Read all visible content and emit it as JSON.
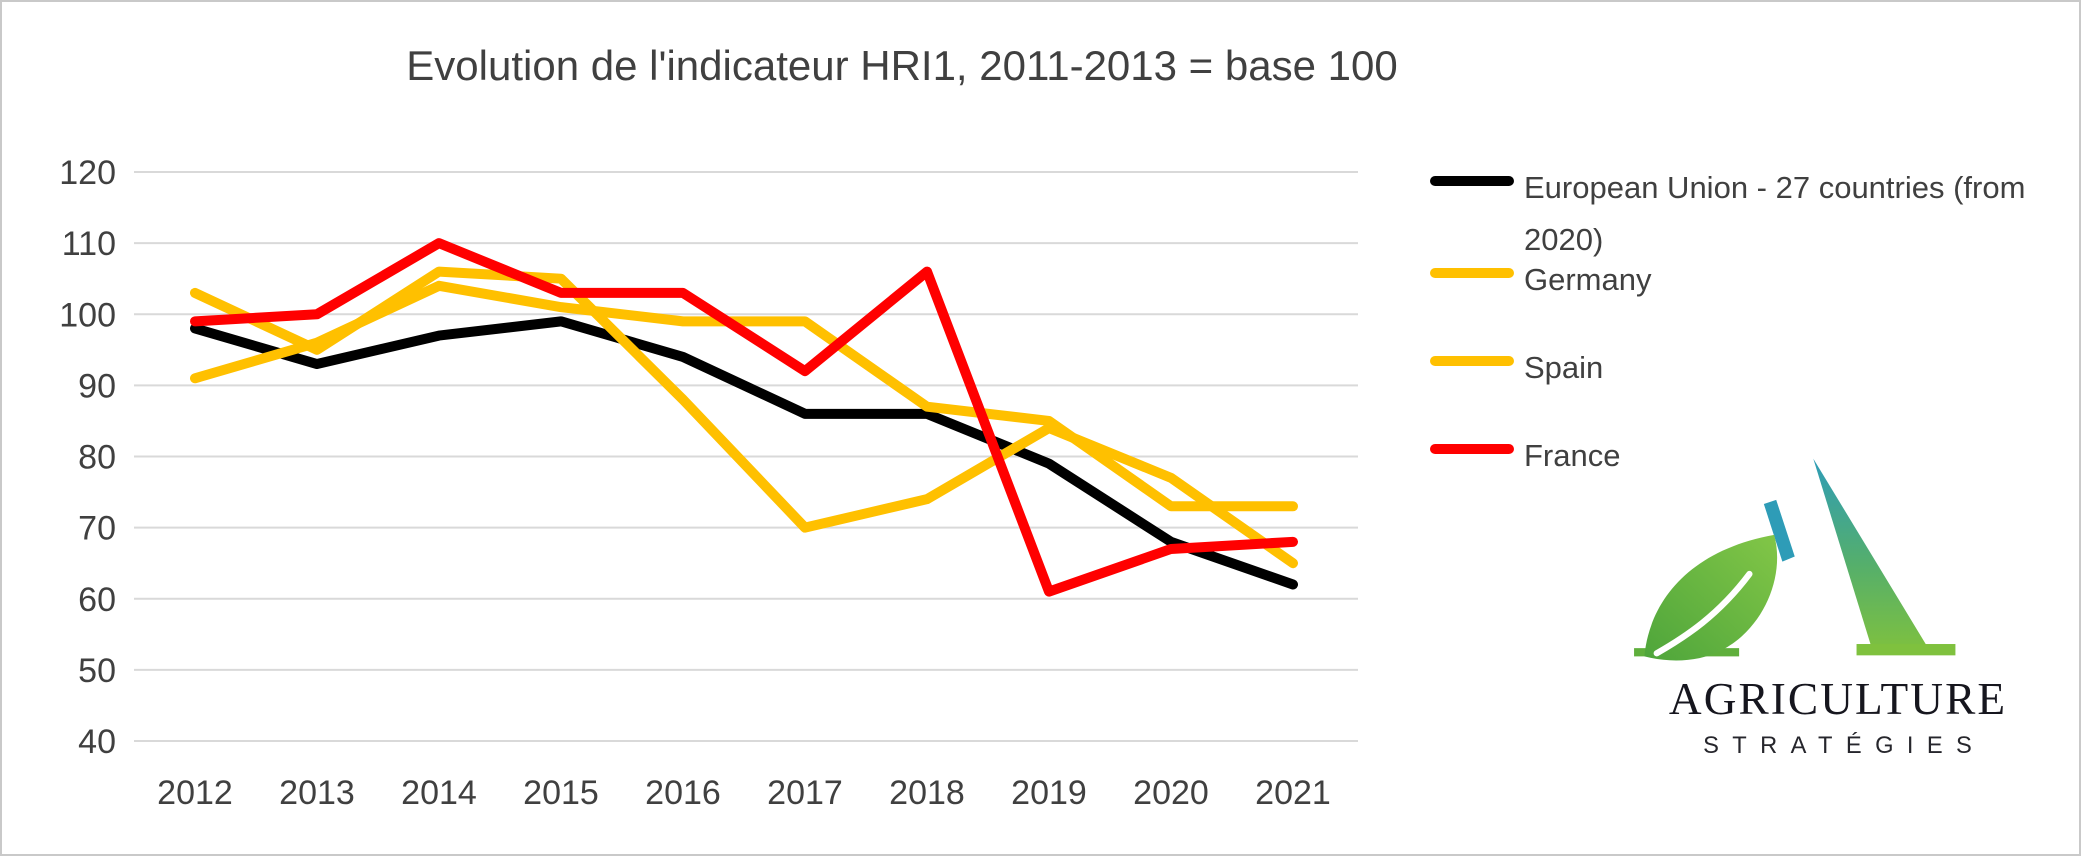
{
  "title": "Evolution de l'indicateur HRI1, 2011-2013 = base 100",
  "chart_data": {
    "type": "line",
    "title": "Evolution de l'indicateur HRI1, 2011-2013 = base 100",
    "x": [
      2012,
      2013,
      2014,
      2015,
      2016,
      2017,
      2018,
      2019,
      2020,
      2021
    ],
    "yticks": [
      120,
      110,
      100,
      90,
      80,
      70,
      60,
      50,
      40
    ],
    "ylim": [
      40,
      120
    ],
    "xlabel": "",
    "ylabel": "",
    "grid": "horizontal",
    "legend_position": "right",
    "series": [
      {
        "name": "European Union - 27 countries (from 2020)",
        "color": "#000000",
        "values": [
          98,
          93,
          97,
          99,
          94,
          86,
          86,
          79,
          68,
          62
        ]
      },
      {
        "name": "Germany",
        "color": "#FFC000",
        "values": [
          103,
          95,
          106,
          105,
          88,
          70,
          74,
          84,
          77,
          65
        ]
      },
      {
        "name": "Spain",
        "color": "#FFC000",
        "values": [
          91,
          96,
          104,
          101,
          99,
          99,
          87,
          85,
          73,
          73
        ]
      },
      {
        "name": "France",
        "color": "#FF0000",
        "values": [
          99,
          100,
          110,
          103,
          103,
          92,
          106,
          61,
          67,
          68
        ]
      }
    ],
    "colors": {
      "gridline": "#D9D9D9",
      "axis_text": "#404040"
    }
  },
  "logo": {
    "line1": "AGRICULTURE",
    "line2": "STRATÉGIES",
    "accent_teal": "#2E9CB7",
    "accent_green": "#7FC13E"
  }
}
